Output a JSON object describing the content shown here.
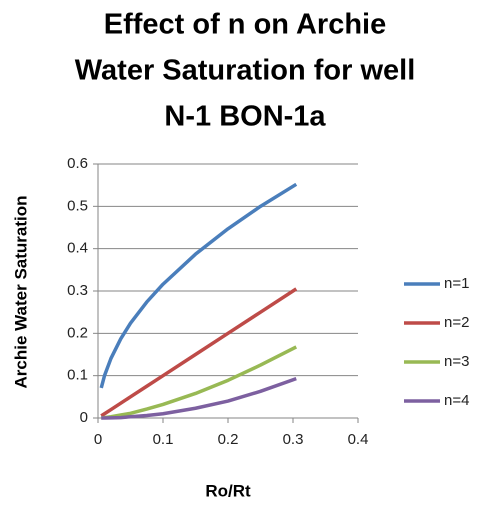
{
  "chart_data": {
    "type": "line",
    "title": [
      "Effect of n on Archie",
      "Water Saturation for well",
      "N-1 BON-1a"
    ],
    "x_label": "Ro/Rt",
    "y_label": "Archie Water Saturation",
    "x": [
      0.005,
      0.01,
      0.02,
      0.035,
      0.05,
      0.075,
      0.1,
      0.15,
      0.2,
      0.25,
      0.305
    ],
    "series": [
      {
        "name": "n=1",
        "color": "#4a7ebb",
        "values": [
          0.071,
          0.1,
          0.141,
          0.187,
          0.224,
          0.274,
          0.316,
          0.387,
          0.447,
          0.5,
          0.552
        ]
      },
      {
        "name": "n=2",
        "color": "#be4b48",
        "values": [
          0.005,
          0.01,
          0.02,
          0.035,
          0.05,
          0.075,
          0.1,
          0.15,
          0.2,
          0.25,
          0.305
        ]
      },
      {
        "name": "n=3",
        "color": "#98b954",
        "values": [
          0.0004,
          0.001,
          0.003,
          0.007,
          0.011,
          0.021,
          0.032,
          0.058,
          0.089,
          0.125,
          0.168
        ]
      },
      {
        "name": "n=4",
        "color": "#7d60a0",
        "values": [
          0,
          0,
          0.0004,
          0.001,
          0.003,
          0.006,
          0.01,
          0.023,
          0.04,
          0.063,
          0.093
        ]
      }
    ],
    "xlim": [
      0,
      0.4
    ],
    "xticks": [
      0,
      0.1,
      0.2,
      0.3,
      0.4
    ],
    "ylim": [
      0,
      0.6
    ],
    "yticks": [
      0,
      0.1,
      0.2,
      0.3,
      0.4,
      0.5,
      0.6
    ],
    "grid": true,
    "legend": "right"
  }
}
